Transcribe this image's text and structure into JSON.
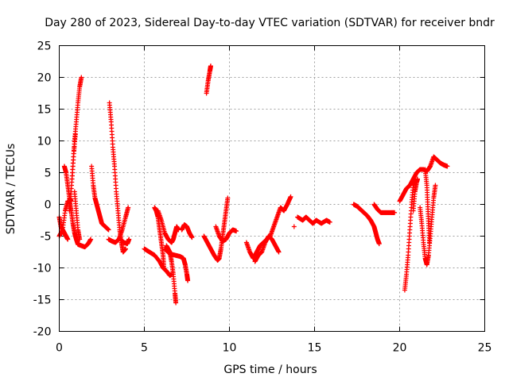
{
  "chart_data": {
    "type": "scatter",
    "title": "Day 280 of 2023, Sidereal Day-to-day VTEC variation (SDTVAR) for receiver bndr",
    "xlabel": "GPS time / hours",
    "ylabel": "SDTVAR / TECUs",
    "xlim": [
      0,
      25
    ],
    "ylim": [
      -20,
      25
    ],
    "xticks": [
      0,
      5,
      10,
      15,
      20,
      25
    ],
    "yticks": [
      -20,
      -15,
      -10,
      -5,
      0,
      5,
      10,
      15,
      20,
      25
    ],
    "grid": true,
    "marker": "+",
    "series": [
      {
        "name": "SDTVAR",
        "color": "#ff0000",
        "segments": [
          [
            [
              0.0,
              -2.0
            ],
            [
              0.1,
              -3.5
            ],
            [
              0.2,
              -4.0
            ],
            [
              0.3,
              -4.5
            ],
            [
              0.4,
              -5.0
            ],
            [
              0.5,
              -5.5
            ]
          ],
          [
            [
              0.0,
              -5.0
            ],
            [
              0.2,
              -4.0
            ],
            [
              0.35,
              -1.0
            ],
            [
              0.5,
              0.5
            ],
            [
              0.6,
              0.5
            ],
            [
              0.7,
              -1.0
            ],
            [
              0.8,
              -3.0
            ],
            [
              0.9,
              -4.5
            ],
            [
              1.0,
              -5.5
            ],
            [
              1.1,
              -6.3
            ],
            [
              1.3,
              -6.5
            ],
            [
              1.5,
              -6.7
            ],
            [
              1.7,
              -6.2
            ],
            [
              1.85,
              -5.5
            ]
          ],
          [
            [
              0.3,
              6.0
            ],
            [
              0.4,
              5.0
            ],
            [
              0.5,
              3.0
            ],
            [
              0.6,
              1.0
            ],
            [
              0.7,
              0.5
            ]
          ],
          [
            [
              0.6,
              -1.0
            ],
            [
              0.7,
              2.0
            ],
            [
              0.8,
              6.0
            ],
            [
              0.9,
              10.0
            ],
            [
              1.0,
              13.0
            ],
            [
              1.1,
              16.0
            ],
            [
              1.2,
              18.5
            ],
            [
              1.3,
              20.0
            ]
          ],
          [
            [
              0.75,
              4.0
            ],
            [
              0.85,
              8.0
            ],
            [
              0.95,
              11.0
            ]
          ],
          [
            [
              0.9,
              2.0
            ],
            [
              1.0,
              -1.0
            ],
            [
              1.1,
              -4.0
            ],
            [
              1.2,
              -5.5
            ]
          ],
          [
            [
              1.9,
              6.0
            ],
            [
              2.0,
              3.0
            ],
            [
              2.1,
              1.0
            ],
            [
              2.2,
              0.0
            ],
            [
              2.3,
              -1.0
            ],
            [
              2.4,
              -2.0
            ],
            [
              2.5,
              -3.0
            ],
            [
              2.7,
              -3.5
            ],
            [
              2.9,
              -4.0
            ]
          ],
          [
            [
              2.95,
              16.0
            ],
            [
              3.05,
              13.0
            ],
            [
              3.15,
              9.0
            ],
            [
              3.25,
              6.0
            ],
            [
              3.35,
              2.0
            ],
            [
              3.45,
              -1.0
            ],
            [
              3.55,
              -4.0
            ],
            [
              3.65,
              -6.0
            ],
            [
              3.75,
              -7.5
            ],
            [
              3.9,
              -7.0
            ]
          ],
          [
            [
              2.9,
              -5.5
            ],
            [
              3.1,
              -5.8
            ],
            [
              3.3,
              -6.0
            ],
            [
              3.5,
              -5.5
            ],
            [
              3.7,
              -4.0
            ],
            [
              3.9,
              -2.0
            ],
            [
              4.05,
              -0.5
            ]
          ],
          [
            [
              3.6,
              -5.5
            ],
            [
              3.8,
              -6.0
            ],
            [
              4.0,
              -6.2
            ],
            [
              4.1,
              -5.5
            ]
          ],
          [
            [
              5.0,
              -7.0
            ],
            [
              5.3,
              -7.5
            ],
            [
              5.6,
              -8.0
            ],
            [
              5.9,
              -9.0
            ],
            [
              6.1,
              -10.0
            ],
            [
              6.3,
              -10.5
            ],
            [
              6.5,
              -11.2
            ],
            [
              6.6,
              -11.0
            ]
          ],
          [
            [
              5.6,
              -0.5
            ],
            [
              5.7,
              -1.0
            ],
            [
              5.8,
              -2.0
            ],
            [
              5.9,
              -4.0
            ],
            [
              6.0,
              -6.0
            ],
            [
              6.1,
              -8.0
            ],
            [
              6.15,
              -10.0
            ]
          ],
          [
            [
              5.8,
              -1.0
            ],
            [
              6.0,
              -2.5
            ],
            [
              6.2,
              -4.5
            ],
            [
              6.4,
              -5.5
            ],
            [
              6.6,
              -6.0
            ],
            [
              6.7,
              -5.5
            ],
            [
              6.8,
              -4.5
            ],
            [
              6.9,
              -3.5
            ],
            [
              7.0,
              -4.0
            ]
          ],
          [
            [
              6.3,
              -6.5
            ],
            [
              6.5,
              -7.5
            ],
            [
              6.6,
              -9.0
            ],
            [
              6.7,
              -11.0
            ],
            [
              6.8,
              -14.0
            ],
            [
              6.85,
              -15.5
            ]
          ],
          [
            [
              6.2,
              -7.0
            ],
            [
              6.5,
              -7.8
            ],
            [
              6.8,
              -8.0
            ],
            [
              7.1,
              -8.2
            ],
            [
              7.3,
              -8.5
            ],
            [
              7.4,
              -9.5
            ],
            [
              7.5,
              -11.0
            ],
            [
              7.55,
              -12.0
            ]
          ],
          [
            [
              7.2,
              -4.0
            ],
            [
              7.35,
              -3.2
            ],
            [
              7.5,
              -3.5
            ],
            [
              7.65,
              -4.5
            ],
            [
              7.8,
              -5.2
            ]
          ],
          [
            [
              8.65,
              17.5
            ],
            [
              8.75,
              19.5
            ],
            [
              8.85,
              21.0
            ],
            [
              8.9,
              21.8
            ]
          ],
          [
            [
              8.5,
              -5.0
            ],
            [
              8.7,
              -6.0
            ],
            [
              8.9,
              -7.0
            ],
            [
              9.1,
              -8.0
            ],
            [
              9.3,
              -8.8
            ],
            [
              9.4,
              -8.5
            ],
            [
              9.5,
              -7.0
            ],
            [
              9.6,
              -5.0
            ],
            [
              9.7,
              -3.0
            ],
            [
              9.8,
              -1.0
            ],
            [
              9.9,
              1.0
            ]
          ],
          [
            [
              9.2,
              -3.5
            ],
            [
              9.4,
              -5.0
            ],
            [
              9.6,
              -5.8
            ],
            [
              9.8,
              -5.5
            ],
            [
              10.0,
              -4.5
            ],
            [
              10.2,
              -4.0
            ],
            [
              10.4,
              -4.2
            ]
          ],
          [
            [
              11.0,
              -6.0
            ],
            [
              11.2,
              -7.5
            ],
            [
              11.4,
              -8.5
            ],
            [
              11.6,
              -7.5
            ],
            [
              11.8,
              -6.5
            ],
            [
              12.0,
              -6.0
            ],
            [
              12.2,
              -5.5
            ]
          ],
          [
            [
              11.5,
              -9.0
            ],
            [
              11.7,
              -8.0
            ],
            [
              11.9,
              -7.5
            ],
            [
              12.1,
              -6.0
            ],
            [
              12.3,
              -5.0
            ],
            [
              12.5,
              -5.5
            ],
            [
              12.7,
              -6.5
            ],
            [
              12.9,
              -7.5
            ]
          ],
          [
            [
              12.4,
              -5.0
            ],
            [
              12.6,
              -3.5
            ],
            [
              12.8,
              -2.0
            ],
            [
              13.0,
              -0.5
            ],
            [
              13.2,
              -1.0
            ],
            [
              13.4,
              0.0
            ],
            [
              13.6,
              1.2
            ]
          ],
          [
            [
              14.0,
              -2.0
            ],
            [
              14.3,
              -2.5
            ],
            [
              14.5,
              -2.0
            ],
            [
              14.7,
              -2.5
            ],
            [
              14.9,
              -3.0
            ],
            [
              15.1,
              -2.5
            ],
            [
              15.4,
              -3.0
            ],
            [
              15.7,
              -2.5
            ],
            [
              15.9,
              -2.8
            ]
          ],
          [
            [
              13.8,
              -3.5
            ]
          ],
          [
            [
              17.3,
              0.0
            ],
            [
              17.5,
              -0.3
            ],
            [
              17.7,
              -0.8
            ],
            [
              17.9,
              -1.3
            ],
            [
              18.1,
              -1.8
            ],
            [
              18.3,
              -2.5
            ],
            [
              18.5,
              -3.5
            ],
            [
              18.6,
              -4.5
            ],
            [
              18.7,
              -5.5
            ],
            [
              18.8,
              -6.2
            ]
          ],
          [
            [
              18.5,
              0.0
            ],
            [
              18.7,
              -0.8
            ],
            [
              18.9,
              -1.3
            ],
            [
              19.2,
              -1.3
            ],
            [
              19.5,
              -1.3
            ],
            [
              19.7,
              -1.3
            ]
          ],
          [
            [
              20.0,
              0.5
            ],
            [
              20.2,
              1.5
            ],
            [
              20.4,
              2.5
            ],
            [
              20.6,
              3.0
            ],
            [
              20.8,
              4.0
            ],
            [
              21.0,
              5.0
            ],
            [
              21.2,
              5.5
            ],
            [
              21.4,
              5.5
            ],
            [
              21.6,
              5.2
            ],
            [
              21.8,
              6.0
            ],
            [
              22.0,
              7.5
            ],
            [
              22.2,
              7.0
            ],
            [
              22.4,
              6.5
            ],
            [
              22.6,
              6.2
            ],
            [
              22.8,
              6.0
            ]
          ],
          [
            [
              20.3,
              -13.5
            ],
            [
              20.4,
              -11.0
            ],
            [
              20.5,
              -8.0
            ],
            [
              20.6,
              -4.0
            ],
            [
              20.7,
              0.0
            ],
            [
              20.8,
              3.0
            ],
            [
              20.9,
              3.5
            ]
          ],
          [
            [
              20.8,
              -1.0
            ],
            [
              20.9,
              2.0
            ],
            [
              21.0,
              3.5
            ],
            [
              21.05,
              4.0
            ]
          ],
          [
            [
              21.2,
              -0.5
            ],
            [
              21.3,
              -3.0
            ],
            [
              21.4,
              -6.0
            ],
            [
              21.5,
              -8.5
            ],
            [
              21.6,
              -9.5
            ],
            [
              21.7,
              -8.0
            ],
            [
              21.8,
              -5.0
            ],
            [
              21.9,
              -2.0
            ],
            [
              22.0,
              1.0
            ],
            [
              22.1,
              3.0
            ]
          ],
          [
            [
              21.5,
              5.5
            ],
            [
              21.6,
              3.0
            ],
            [
              21.65,
              0.0
            ],
            [
              21.7,
              -3.0
            ],
            [
              21.75,
              -6.0
            ]
          ]
        ]
      }
    ]
  }
}
